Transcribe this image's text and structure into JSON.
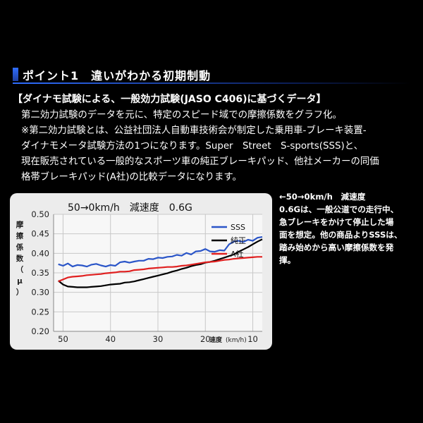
{
  "heading": {
    "title": "ポイント1　違いがわかる初期制動"
  },
  "subheading": "【ダイナモ試験による、一般効力試験(JASO C406)に基づくデータ】",
  "body_lines": [
    "第二効力試験のデータを元に、特定のスピード域での摩擦係数をグラフ化。",
    "※第二効力試験とは、公益社団法人自動車技術会が制定した乗用車-ブレーキ装置-",
    "ダイナモメータ試験方法の1つになります。Super　Street　S-sports(SSS)と、",
    "現在販売されている一般的なスポーツ車の純正ブレーキパッド、他社メーカーの同価",
    "格帯ブレーキパッド(A社)の比較データになります。"
  ],
  "side_note_lines": [
    "←50→0km/h　減速度",
    "0.6Gは、一般公道での走行中、",
    "急ブレーキをかけて停止した場",
    "面を想定。他の商品よりSSSは、",
    "踏み始めから高い摩擦係数を発",
    "揮。"
  ],
  "chart_data": {
    "type": "line",
    "title": "50→0km/h　減速度　0.6G",
    "ylabel": "摩擦係数（μ）",
    "xlabel": "速度",
    "xunit": "(km/h)",
    "xlim": [
      52,
      8
    ],
    "ylim": [
      0.2,
      0.5
    ],
    "yticks": [
      "0.20",
      "0.25",
      "0.30",
      "0.35",
      "0.40",
      "0.45",
      "0.50"
    ],
    "xticks": [
      "50",
      "40",
      "30",
      "20",
      "10"
    ],
    "grid": true,
    "legend": "top-right",
    "series": [
      {
        "name": "SSS",
        "color": "#2a55c8",
        "x": [
          51,
          50,
          49,
          48,
          47,
          46,
          45,
          44,
          43,
          42,
          41,
          40,
          39,
          38,
          37,
          36,
          35,
          34,
          33,
          32,
          31,
          30,
          29,
          28,
          27,
          26,
          25,
          24,
          23,
          22,
          21,
          20,
          19,
          18,
          17,
          16,
          15,
          14,
          13,
          12,
          11,
          10,
          9,
          8
        ],
        "y": [
          0.372,
          0.368,
          0.374,
          0.366,
          0.37,
          0.369,
          0.366,
          0.371,
          0.373,
          0.369,
          0.366,
          0.37,
          0.368,
          0.377,
          0.379,
          0.376,
          0.379,
          0.381,
          0.381,
          0.386,
          0.385,
          0.389,
          0.388,
          0.391,
          0.392,
          0.396,
          0.394,
          0.401,
          0.397,
          0.405,
          0.406,
          0.411,
          0.405,
          0.404,
          0.408,
          0.407,
          0.423,
          0.43,
          0.432,
          0.429,
          0.435,
          0.432,
          0.44,
          0.442
        ]
      },
      {
        "name": "純正",
        "color": "#000000",
        "x": [
          51,
          50,
          49,
          48,
          47,
          46,
          45,
          44,
          43,
          42,
          41,
          40,
          39,
          38,
          37,
          36,
          35,
          34,
          33,
          32,
          31,
          30,
          29,
          28,
          27,
          26,
          25,
          24,
          23,
          22,
          21,
          20,
          19,
          18,
          17,
          16,
          15,
          14,
          13,
          12,
          11,
          10,
          9,
          8
        ],
        "y": [
          0.33,
          0.32,
          0.315,
          0.314,
          0.313,
          0.313,
          0.313,
          0.314,
          0.315,
          0.316,
          0.318,
          0.32,
          0.321,
          0.322,
          0.325,
          0.326,
          0.328,
          0.331,
          0.334,
          0.337,
          0.34,
          0.343,
          0.346,
          0.349,
          0.353,
          0.356,
          0.36,
          0.363,
          0.367,
          0.37,
          0.372,
          0.376,
          0.378,
          0.381,
          0.385,
          0.389,
          0.393,
          0.397,
          0.404,
          0.41,
          0.416,
          0.423,
          0.43,
          0.436
        ]
      },
      {
        "name": "A社",
        "color": "#e02020",
        "x": [
          51,
          50,
          49,
          48,
          47,
          46,
          45,
          44,
          43,
          42,
          41,
          40,
          39,
          38,
          37,
          36,
          35,
          34,
          33,
          32,
          31,
          30,
          29,
          28,
          27,
          26,
          25,
          24,
          23,
          22,
          21,
          20,
          19,
          18,
          17,
          16,
          15,
          14,
          13,
          12,
          11,
          10,
          9,
          8
        ],
        "y": [
          0.328,
          0.333,
          0.338,
          0.34,
          0.341,
          0.342,
          0.344,
          0.345,
          0.346,
          0.347,
          0.349,
          0.35,
          0.351,
          0.353,
          0.353,
          0.354,
          0.357,
          0.358,
          0.359,
          0.361,
          0.362,
          0.363,
          0.364,
          0.365,
          0.365,
          0.366,
          0.368,
          0.369,
          0.371,
          0.373,
          0.375,
          0.377,
          0.378,
          0.379,
          0.381,
          0.383,
          0.384,
          0.386,
          0.387,
          0.388,
          0.389,
          0.39,
          0.391,
          0.391
        ]
      }
    ]
  }
}
